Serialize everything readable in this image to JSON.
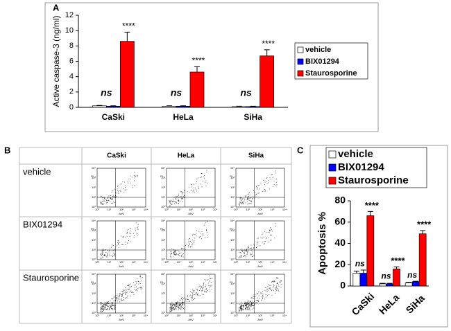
{
  "chart_data": [
    {
      "type": "bar",
      "panel_label": "A",
      "y_label": "Active caspase-3 (ng/ml)",
      "categories": [
        "CaSki",
        "HeLa",
        "SiHa"
      ],
      "series": [
        {
          "name": "vehicle",
          "color": "#ffffff",
          "values": [
            0.2,
            0.15,
            0.1
          ],
          "errors": [
            0.05,
            0.05,
            0.05
          ]
        },
        {
          "name": "BIX01294",
          "color": "#0000ff",
          "values": [
            0.15,
            0.15,
            0.1
          ],
          "errors": [
            0.05,
            0.05,
            0.05
          ]
        },
        {
          "name": "Staurosporine",
          "color": "#ff0000",
          "values": [
            8.6,
            4.6,
            6.7
          ],
          "errors": [
            1.2,
            0.7,
            0.8
          ]
        }
      ],
      "annotations": {
        "ns": [
          "ns",
          "ns",
          "ns"
        ],
        "stars": [
          "****",
          "****",
          "****"
        ]
      },
      "ylim": [
        0,
        12
      ],
      "yticks": [
        0,
        2,
        4,
        6,
        8,
        10,
        12
      ],
      "legend": "right"
    },
    {
      "type": "bar",
      "panel_label": "C",
      "y_label": "Apoptosis %",
      "categories": [
        "CaSki",
        "HeLa",
        "SiHa"
      ],
      "series": [
        {
          "name": "vehicle",
          "color": "#ffffff",
          "values": [
            12,
            2,
            3
          ],
          "errors": [
            2,
            0.5,
            0.5
          ]
        },
        {
          "name": "BIX01294",
          "color": "#0000ff",
          "values": [
            12,
            2,
            4
          ],
          "errors": [
            3,
            0.5,
            0.5
          ]
        },
        {
          "name": "Staurosporine",
          "color": "#ff0000",
          "values": [
            66,
            16,
            49
          ],
          "errors": [
            4,
            2,
            3
          ]
        }
      ],
      "annotations": {
        "ns": [
          "ns",
          "ns",
          "ns"
        ],
        "stars": [
          "****",
          "****",
          "****"
        ]
      },
      "ylim": [
        0,
        80
      ],
      "yticks": [
        0,
        20,
        40,
        60,
        80
      ],
      "legend": "top"
    }
  ],
  "panel_b": {
    "panel_label": "B",
    "columns": [
      "CaSki",
      "HeLa",
      "SiHa"
    ],
    "rows": [
      "vehicle",
      "BIX01294",
      "Staurosporine"
    ],
    "plot_x_label": "AnV",
    "plot_y_label": "PI",
    "plot_ticks": [
      "10⁰",
      "10¹",
      "10²",
      "10³",
      "10⁴"
    ]
  }
}
